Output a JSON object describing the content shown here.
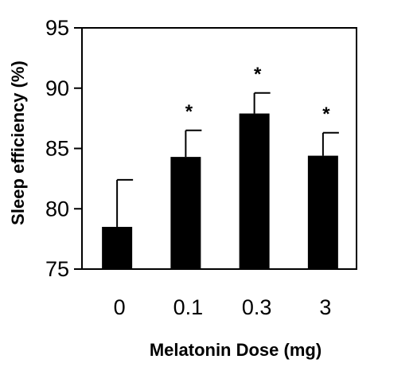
{
  "chart_data": {
    "type": "bar",
    "title": "",
    "xlabel": "Melatonin Dose (mg)",
    "ylabel": "Sleep efficiency (%)",
    "categories": [
      "0",
      "0.1",
      "0.3",
      "3"
    ],
    "values": [
      78.5,
      84.3,
      87.9,
      84.4
    ],
    "error_upper": [
      82.4,
      86.5,
      89.6,
      86.3
    ],
    "significance": [
      "",
      "*",
      "*",
      "*"
    ],
    "ylim": [
      75,
      95
    ],
    "yticks": [
      "75",
      "80",
      "85",
      "90",
      "95"
    ],
    "grid": false,
    "legend": "none",
    "bar_color": "#000000"
  }
}
